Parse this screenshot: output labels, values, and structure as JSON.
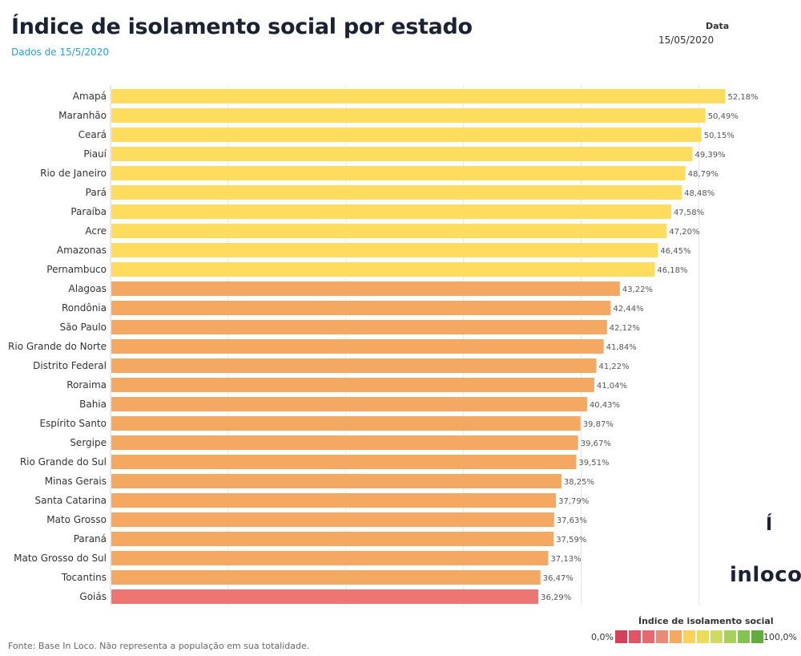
{
  "header": {
    "title": "Índice de isolamento social por estado",
    "subtitle": "Dados de 15/5/2020"
  },
  "filter": {
    "label": "Data",
    "value": "15/05/2020"
  },
  "footer": {
    "source": "Fonte: Base In Loco. Não representa a população em sua totalidade."
  },
  "legend": {
    "title": "Índice de isolamento social",
    "min_label": "0,0%",
    "max_label": "100,0%",
    "colors": [
      "#d6405a",
      "#e05566",
      "#e86a70",
      "#ee8a73",
      "#f4a862",
      "#fbd25a",
      "#eadd5c",
      "#cfda62",
      "#a8d060",
      "#84c352",
      "#62ad3e"
    ]
  },
  "logo": {
    "glyph": "Í",
    "text": "inloco"
  },
  "colors": {
    "yellow": "#fedc5d",
    "orange": "#f4a862",
    "red": "#ee7572",
    "grid": "#e6e6e6"
  },
  "chart_data": {
    "type": "bar",
    "orientation": "horizontal",
    "title": "Índice de isolamento social por estado",
    "xlim": [
      0,
      100
    ],
    "grid": true,
    "categories": [
      "Amapá",
      "Maranhão",
      "Ceará",
      "Piauí",
      "Rio de Janeiro",
      "Pará",
      "Paraíba",
      "Acre",
      "Amazonas",
      "Pernambuco",
      "Alagoas",
      "Rondônia",
      "São Paulo",
      "Rio Grande do Norte",
      "Distrito Federal",
      "Roraima",
      "Bahia",
      "Espírito Santo",
      "Sergipe",
      "Rio Grande do Sul",
      "Minas Gerais",
      "Santa Catarina",
      "Mato Grosso",
      "Paraná",
      "Mato Grosso do Sul",
      "Tocantins",
      "Goiás"
    ],
    "values": [
      52.18,
      50.49,
      50.15,
      49.39,
      48.79,
      48.48,
      47.58,
      47.2,
      46.45,
      46.18,
      43.22,
      42.44,
      42.12,
      41.84,
      41.22,
      41.04,
      40.43,
      39.87,
      39.67,
      39.51,
      38.25,
      37.79,
      37.63,
      37.59,
      37.13,
      36.47,
      36.29
    ],
    "data_labels": [
      "52,18%",
      "50,49%",
      "50,15%",
      "49,39%",
      "48,79%",
      "48,48%",
      "47,58%",
      "47,20%",
      "46,45%",
      "46,18%",
      "43,22%",
      "42,44%",
      "42,12%",
      "41,84%",
      "41,22%",
      "41,04%",
      "40,43%",
      "39,87%",
      "39,67%",
      "39,51%",
      "38,25%",
      "37,79%",
      "37,63%",
      "37,59%",
      "37,13%",
      "36,47%",
      "36,29%"
    ],
    "bar_colors": [
      "yellow",
      "yellow",
      "yellow",
      "yellow",
      "yellow",
      "yellow",
      "yellow",
      "yellow",
      "yellow",
      "yellow",
      "orange",
      "orange",
      "orange",
      "orange",
      "orange",
      "orange",
      "orange",
      "orange",
      "orange",
      "orange",
      "orange",
      "orange",
      "orange",
      "orange",
      "orange",
      "orange",
      "red"
    ]
  }
}
